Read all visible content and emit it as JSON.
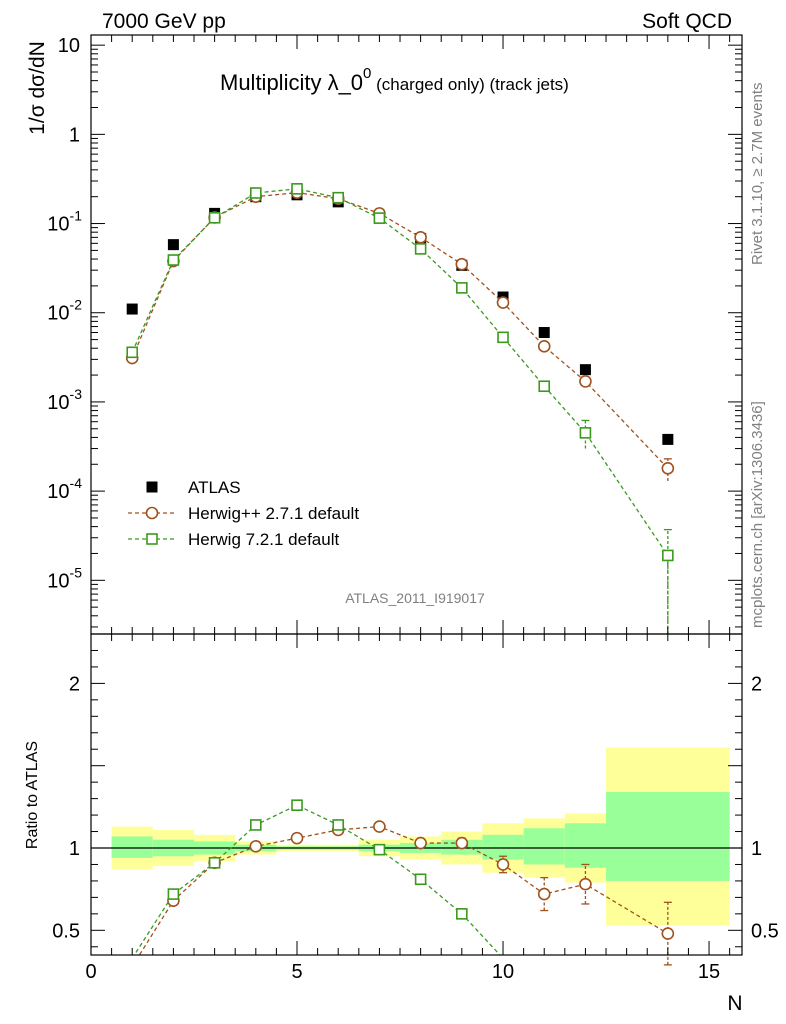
{
  "header": {
    "left": "7000 GeV pp",
    "right": "Soft QCD"
  },
  "side_labels": {
    "rivet": "Rivet 3.1.10, ≥ 2.7M events",
    "mcplots": "mcplots.cern.ch [arXiv:1306.3436]"
  },
  "chart_data": [
    {
      "type": "scatter",
      "panel": "main",
      "title_main": "Multiplicity λ_0",
      "title_sup": "0",
      "title_suffix": " (charged only) (track jets)",
      "ylabel": "1/σ dσ/dN",
      "yscale": "log",
      "xlim": [
        0,
        15.8
      ],
      "ylim": [
        2.5e-06,
        13
      ],
      "grid": false,
      "legend_position": "bottom-left",
      "watermark": "ATLAS_2011_I919017",
      "y_tick_labels": [
        {
          "mantissa": "10",
          "exp": "-5",
          "value": 1e-05
        },
        {
          "mantissa": "10",
          "exp": "-4",
          "value": 0.0001
        },
        {
          "mantissa": "10",
          "exp": "-3",
          "value": 0.001
        },
        {
          "mantissa": "10",
          "exp": "-2",
          "value": 0.01
        },
        {
          "mantissa": "10",
          "exp": "-1",
          "value": 0.1
        },
        {
          "mantissa": "1",
          "exp": "",
          "value": 1
        },
        {
          "mantissa": "10",
          "exp": "",
          "value": 10
        }
      ],
      "series": [
        {
          "name": "ATLAS",
          "marker": "filled-square",
          "color": "#000000",
          "x": [
            1,
            2,
            3,
            4,
            5,
            6,
            7,
            8,
            9,
            10,
            11,
            12,
            14
          ],
          "y": [
            0.011,
            0.058,
            0.13,
            0.2,
            0.21,
            0.175,
            0.115,
            0.068,
            0.034,
            0.015,
            0.006,
            0.0023,
            0.00038
          ]
        },
        {
          "name": "Herwig++ 2.7.1 default",
          "marker": "open-circle",
          "color": "#a0521e",
          "x": [
            1,
            2,
            3,
            4,
            5,
            6,
            7,
            8,
            9,
            10,
            11,
            12,
            14
          ],
          "y": [
            0.0031,
            0.038,
            0.117,
            0.2,
            0.222,
            0.19,
            0.13,
            0.07,
            0.035,
            0.013,
            0.0042,
            0.0017,
            0.00018
          ],
          "yerr_low": [
            0,
            0,
            0,
            0,
            0,
            0,
            0,
            0,
            0,
            0,
            0,
            0,
            5e-05
          ],
          "yerr_high": [
            0,
            0,
            0,
            0,
            0,
            0,
            0,
            0,
            0,
            0,
            0,
            0,
            5e-05
          ]
        },
        {
          "name": "Herwig 7.2.1 default",
          "marker": "open-square",
          "color": "#3a9a1e",
          "x": [
            1,
            2,
            3,
            4,
            5,
            6,
            7,
            8,
            9,
            10,
            11,
            12,
            14
          ],
          "y": [
            0.0036,
            0.039,
            0.116,
            0.22,
            0.245,
            0.195,
            0.115,
            0.052,
            0.019,
            0.0053,
            0.0015,
            0.00045,
            1.9e-05
          ],
          "yerr_low": [
            0,
            0,
            0,
            0,
            0,
            0,
            0,
            0,
            0,
            0,
            0,
            0.00015,
            1.7e-05
          ],
          "yerr_high": [
            0,
            0,
            0,
            0,
            0,
            0,
            0,
            0,
            0,
            0,
            0.0002,
            0.00017,
            1.8e-05
          ]
        }
      ]
    },
    {
      "type": "scatter",
      "panel": "ratio",
      "xlabel": "N",
      "ylabel": "Ratio to ATLAS",
      "xlim": [
        0,
        15.8
      ],
      "ylim": [
        0.35,
        2.3
      ],
      "x_ticks": [
        0,
        5,
        10,
        15
      ],
      "y_ticks": [
        0.5,
        1,
        2
      ],
      "bands": {
        "x_edges": [
          0.5,
          1.5,
          2.5,
          3.5,
          4.5,
          5.5,
          6.5,
          7.5,
          8.5,
          9.5,
          10.5,
          11.5,
          12.5,
          15.5
        ],
        "yellow_low": [
          0.87,
          0.89,
          0.92,
          0.96,
          0.98,
          0.98,
          0.95,
          0.93,
          0.9,
          0.85,
          0.82,
          0.79,
          0.53
        ],
        "yellow_high": [
          1.13,
          1.11,
          1.08,
          1.04,
          1.02,
          1.02,
          1.05,
          1.07,
          1.1,
          1.15,
          1.18,
          1.21,
          1.61
        ],
        "green_low": [
          0.94,
          0.95,
          0.96,
          0.98,
          0.99,
          0.99,
          0.98,
          0.97,
          0.96,
          0.93,
          0.9,
          0.88,
          0.8
        ],
        "green_high": [
          1.07,
          1.05,
          1.04,
          1.02,
          1.01,
          1.01,
          1.02,
          1.03,
          1.05,
          1.08,
          1.12,
          1.15,
          1.34
        ]
      },
      "series": [
        {
          "name": "Herwig++ 2.7.1 default",
          "marker": "open-circle",
          "color": "#a0521e",
          "x": [
            1,
            2,
            3,
            4,
            5,
            6,
            7,
            8,
            9,
            10,
            11,
            12,
            14
          ],
          "y": [
            0.28,
            0.68,
            0.91,
            1.01,
            1.06,
            1.11,
            1.13,
            1.03,
            1.03,
            0.9,
            0.72,
            0.78,
            0.48
          ],
          "yerr_low": [
            0,
            0,
            0,
            0,
            0,
            0,
            0,
            0,
            0.03,
            0.05,
            0.1,
            0.12,
            0.19
          ],
          "yerr_high": [
            0,
            0,
            0,
            0,
            0,
            0,
            0,
            0,
            0.03,
            0.05,
            0.1,
            0.12,
            0.19
          ]
        },
        {
          "name": "Herwig 7.2.1 default",
          "marker": "open-square",
          "color": "#3a9a1e",
          "x": [
            1,
            2,
            3,
            4,
            5,
            6,
            7,
            8,
            9,
            10
          ],
          "y": [
            0.33,
            0.72,
            0.91,
            1.14,
            1.26,
            1.14,
            0.99,
            0.81,
            0.6,
            0.33
          ],
          "yerr_low": [
            0,
            0,
            0,
            0,
            0,
            0,
            0,
            0,
            0.03,
            0
          ],
          "yerr_high": [
            0,
            0,
            0,
            0,
            0,
            0,
            0,
            0,
            0.03,
            0
          ]
        }
      ]
    }
  ]
}
